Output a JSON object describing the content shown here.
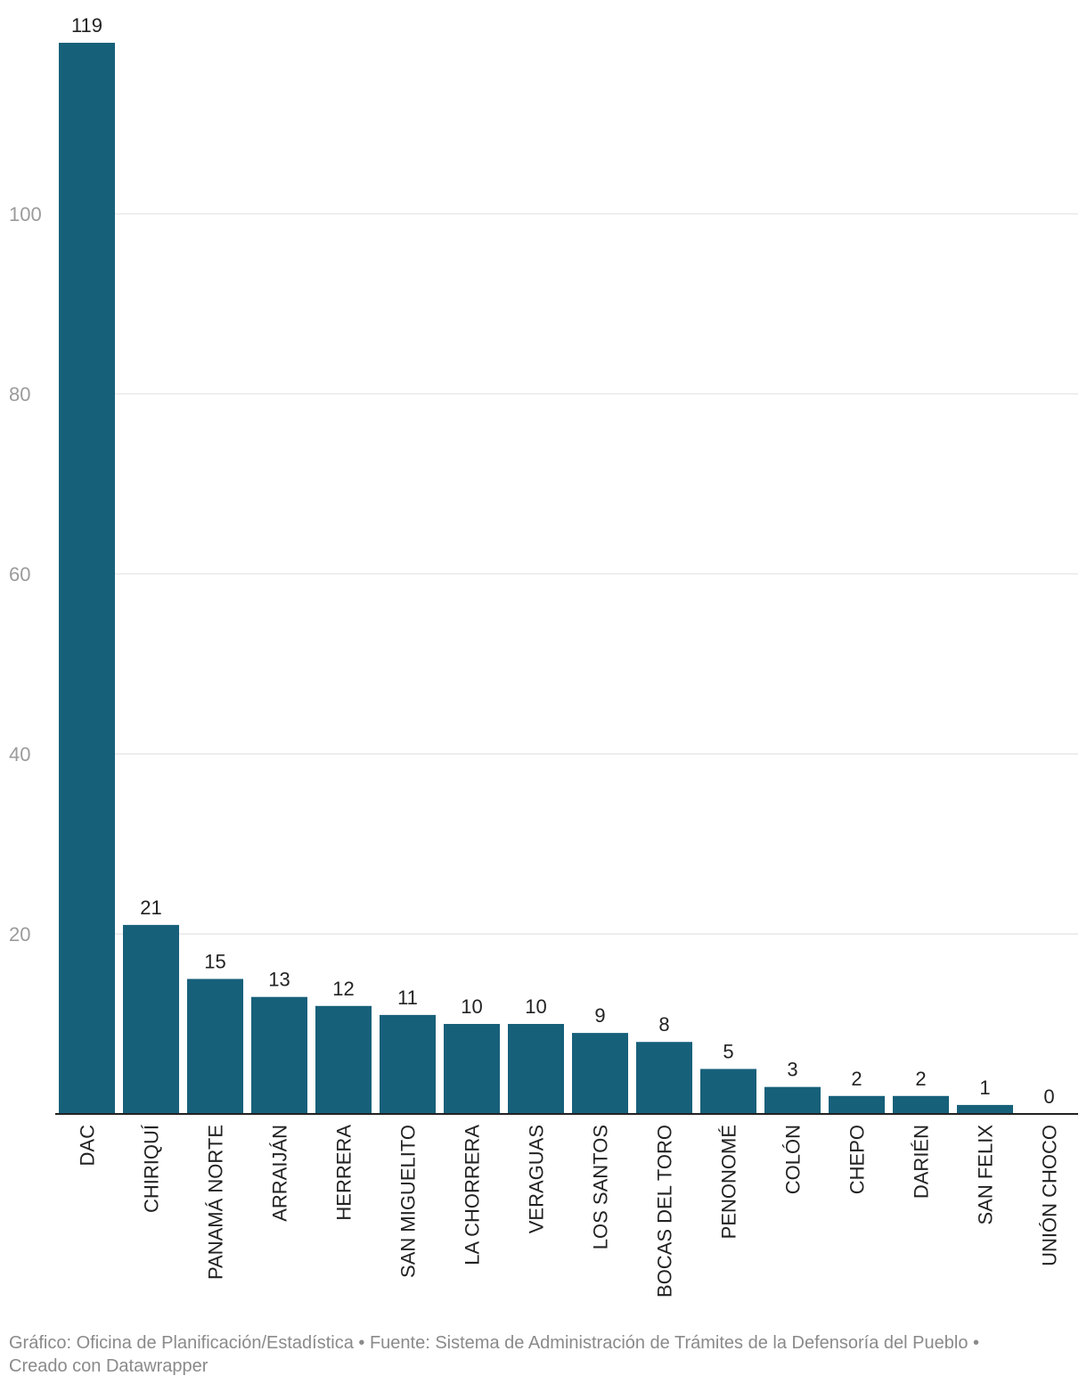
{
  "chart_data": {
    "type": "bar",
    "categories": [
      "DAC",
      "CHIRIQUÍ",
      "PANAMÁ NORTE",
      "ARRAIJÁN",
      "HERRERA",
      "SAN MIGUELITO",
      "LA CHORRERA",
      "VERAGUAS",
      "LOS SANTOS",
      "BOCAS DEL TORO",
      "PENONOMÉ",
      "COLÓN",
      "CHEPO",
      "DARIÉN",
      "SAN FELIX",
      "UNIÓN CHOCO"
    ],
    "values": [
      119,
      21,
      15,
      13,
      12,
      11,
      10,
      10,
      9,
      8,
      5,
      3,
      2,
      2,
      1,
      0
    ],
    "yticks": [
      20,
      40,
      60,
      80,
      100
    ],
    "ylim": [
      0,
      119
    ],
    "grid": true,
    "bar_color": "#17607a"
  },
  "footer": {
    "line1": "Gráfico: Oficina de Planificación/Estadística • Fuente: Sistema de Administración de Trámites de la Defensoría del Pueblo •",
    "line2": "Creado con Datawrapper"
  }
}
